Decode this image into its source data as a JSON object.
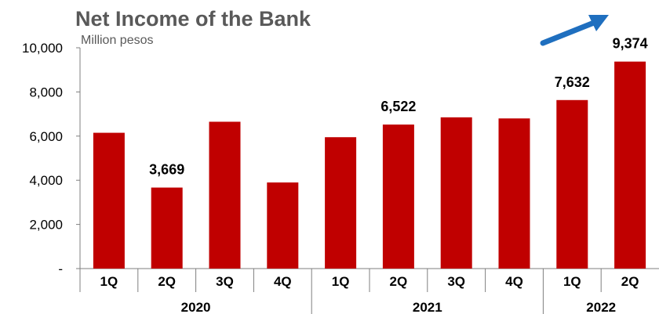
{
  "chart_data": {
    "type": "bar",
    "title": "Net Income of the Bank",
    "unit_label": "Million pesos",
    "categories": [
      "1Q",
      "2Q",
      "3Q",
      "4Q",
      "1Q",
      "2Q",
      "3Q",
      "4Q",
      "1Q",
      "2Q"
    ],
    "groups": [
      {
        "label": "2020",
        "count": 4
      },
      {
        "label": "2021",
        "count": 4
      },
      {
        "label": "2022",
        "count": 2
      }
    ],
    "values": [
      6150,
      3669,
      6650,
      3900,
      5950,
      6522,
      6850,
      6800,
      7632,
      9374
    ],
    "data_labels": [
      "",
      "3,669",
      "",
      "",
      "",
      "6,522",
      "",
      "",
      "7,632",
      "9,374"
    ],
    "ylim": [
      0,
      10000
    ],
    "yticks": [
      0,
      2000,
      4000,
      6000,
      8000,
      10000
    ],
    "ytick_labels": [
      "-",
      "2,000",
      "4,000",
      "6,000",
      "8,000",
      "10,000"
    ],
    "bar_color": "#C00000",
    "arrow_color": "#1F6FBF",
    "grid": false,
    "legend": "none"
  }
}
